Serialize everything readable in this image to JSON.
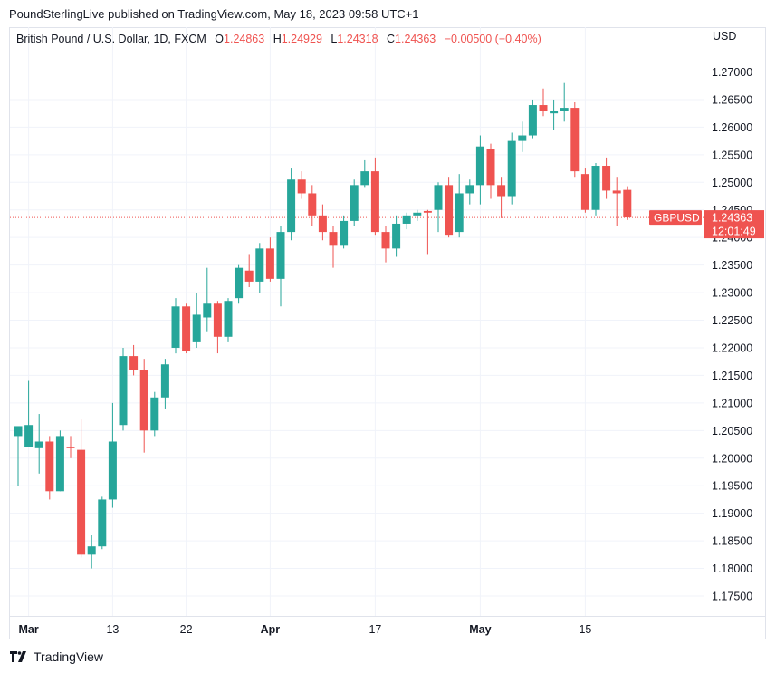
{
  "header": {
    "text": "PoundSterlingLive published on TradingView.com, May 18, 2023 09:58 UTC+1"
  },
  "legend": {
    "symbol": "British Pound / U.S. Dollar, 1D, FXCM",
    "o_label": "O",
    "o_value": "1.24863",
    "h_label": "H",
    "h_value": "1.24929",
    "l_label": "L",
    "l_value": "1.24318",
    "c_label": "C",
    "c_value": "1.24363",
    "change": "−0.00500 (−0.40%)"
  },
  "price_axis": {
    "currency": "USD"
  },
  "price_tag": {
    "symbol": "GBPUSD",
    "price": "1.24363",
    "countdown": "12:01:49"
  },
  "footer": {
    "brand": "TradingView"
  },
  "colors": {
    "up": "#26a69a",
    "down": "#ef5350",
    "grid": "#f0f3fa",
    "text": "#131722"
  },
  "chart_data": {
    "type": "candlestick",
    "symbol": "GBPUSD",
    "ylim": [
      1.17,
      1.275
    ],
    "yticks": [
      1.175,
      1.18,
      1.185,
      1.19,
      1.195,
      1.2,
      1.205,
      1.21,
      1.215,
      1.22,
      1.225,
      1.23,
      1.235,
      1.24,
      1.245,
      1.25,
      1.255,
      1.26,
      1.265,
      1.27
    ],
    "ytick_labels": [
      "1.17500",
      "1.18000",
      "1.18500",
      "1.19000",
      "1.19500",
      "1.20000",
      "1.20500",
      "1.21000",
      "1.21500",
      "1.22000",
      "1.22500",
      "1.23000",
      "1.23500",
      "1.24000",
      "1.24500",
      "1.25000",
      "1.25500",
      "1.26000",
      "1.26500",
      "1.27000"
    ],
    "xtick_labels": [
      {
        "label": "Mar",
        "index": 1,
        "bold": true
      },
      {
        "label": "13",
        "index": 9,
        "bold": false
      },
      {
        "label": "22",
        "index": 16,
        "bold": false
      },
      {
        "label": "Apr",
        "index": 24,
        "bold": true
      },
      {
        "label": "17",
        "index": 34,
        "bold": false
      },
      {
        "label": "May",
        "index": 44,
        "bold": true
      },
      {
        "label": "15",
        "index": 54,
        "bold": false
      }
    ],
    "candles": [
      {
        "o": 1.204,
        "h": 1.2058,
        "l": 1.195,
        "c": 1.2058
      },
      {
        "o": 1.202,
        "h": 1.214,
        "l": 1.202,
        "c": 1.206
      },
      {
        "o": 1.2018,
        "h": 1.208,
        "l": 1.1972,
        "c": 1.203
      },
      {
        "o": 1.203,
        "h": 1.204,
        "l": 1.1925,
        "c": 1.194
      },
      {
        "o": 1.194,
        "h": 1.205,
        "l": 1.194,
        "c": 1.204
      },
      {
        "o": 1.202,
        "h": 1.204,
        "l": 1.2,
        "c": 1.2018
      },
      {
        "o": 1.2015,
        "h": 1.207,
        "l": 1.182,
        "c": 1.1825
      },
      {
        "o": 1.1825,
        "h": 1.186,
        "l": 1.18,
        "c": 1.184
      },
      {
        "o": 1.184,
        "h": 1.193,
        "l": 1.1835,
        "c": 1.1925
      },
      {
        "o": 1.1925,
        "h": 1.21,
        "l": 1.191,
        "c": 1.203
      },
      {
        "o": 1.206,
        "h": 1.22,
        "l": 1.205,
        "c": 1.2185
      },
      {
        "o": 1.2185,
        "h": 1.2205,
        "l": 1.215,
        "c": 1.216
      },
      {
        "o": 1.216,
        "h": 1.218,
        "l": 1.201,
        "c": 1.205
      },
      {
        "o": 1.205,
        "h": 1.212,
        "l": 1.204,
        "c": 1.211
      },
      {
        "o": 1.211,
        "h": 1.218,
        "l": 1.209,
        "c": 1.217
      },
      {
        "o": 1.22,
        "h": 1.229,
        "l": 1.219,
        "c": 1.2275
      },
      {
        "o": 1.2275,
        "h": 1.228,
        "l": 1.219,
        "c": 1.2195
      },
      {
        "o": 1.221,
        "h": 1.23,
        "l": 1.22,
        "c": 1.226
      },
      {
        "o": 1.2255,
        "h": 1.2345,
        "l": 1.223,
        "c": 1.228
      },
      {
        "o": 1.228,
        "h": 1.2285,
        "l": 1.219,
        "c": 1.222
      },
      {
        "o": 1.222,
        "h": 1.229,
        "l": 1.221,
        "c": 1.2285
      },
      {
        "o": 1.229,
        "h": 1.235,
        "l": 1.228,
        "c": 1.2345
      },
      {
        "o": 1.234,
        "h": 1.237,
        "l": 1.231,
        "c": 1.232
      },
      {
        "o": 1.232,
        "h": 1.239,
        "l": 1.23,
        "c": 1.238
      },
      {
        "o": 1.238,
        "h": 1.24,
        "l": 1.232,
        "c": 1.2325
      },
      {
        "o": 1.2325,
        "h": 1.242,
        "l": 1.2275,
        "c": 1.241
      },
      {
        "o": 1.241,
        "h": 1.2525,
        "l": 1.2395,
        "c": 1.2505
      },
      {
        "o": 1.2505,
        "h": 1.252,
        "l": 1.247,
        "c": 1.248
      },
      {
        "o": 1.248,
        "h": 1.2495,
        "l": 1.242,
        "c": 1.244
      },
      {
        "o": 1.244,
        "h": 1.246,
        "l": 1.2395,
        "c": 1.241
      },
      {
        "o": 1.241,
        "h": 1.242,
        "l": 1.2345,
        "c": 1.2385
      },
      {
        "o": 1.2385,
        "h": 1.244,
        "l": 1.238,
        "c": 1.243
      },
      {
        "o": 1.243,
        "h": 1.2505,
        "l": 1.242,
        "c": 1.2495
      },
      {
        "o": 1.2495,
        "h": 1.254,
        "l": 1.249,
        "c": 1.252
      },
      {
        "o": 1.252,
        "h": 1.2545,
        "l": 1.2405,
        "c": 1.241
      },
      {
        "o": 1.241,
        "h": 1.242,
        "l": 1.2355,
        "c": 1.238
      },
      {
        "o": 1.238,
        "h": 1.244,
        "l": 1.2365,
        "c": 1.2425
      },
      {
        "o": 1.2425,
        "h": 1.2445,
        "l": 1.2415,
        "c": 1.244
      },
      {
        "o": 1.244,
        "h": 1.245,
        "l": 1.243,
        "c": 1.2445
      },
      {
        "o": 1.2448,
        "h": 1.245,
        "l": 1.237,
        "c": 1.2445
      },
      {
        "o": 1.245,
        "h": 1.25,
        "l": 1.241,
        "c": 1.2495
      },
      {
        "o": 1.2495,
        "h": 1.251,
        "l": 1.24,
        "c": 1.2405
      },
      {
        "o": 1.241,
        "h": 1.2515,
        "l": 1.24,
        "c": 1.248
      },
      {
        "o": 1.248,
        "h": 1.2505,
        "l": 1.246,
        "c": 1.2495
      },
      {
        "o": 1.2495,
        "h": 1.2585,
        "l": 1.246,
        "c": 1.2565
      },
      {
        "o": 1.256,
        "h": 1.257,
        "l": 1.247,
        "c": 1.2495
      },
      {
        "o": 1.2495,
        "h": 1.251,
        "l": 1.2435,
        "c": 1.2475
      },
      {
        "o": 1.2475,
        "h": 1.259,
        "l": 1.246,
        "c": 1.2575
      },
      {
        "o": 1.2575,
        "h": 1.261,
        "l": 1.2555,
        "c": 1.2585
      },
      {
        "o": 1.2585,
        "h": 1.265,
        "l": 1.258,
        "c": 1.264
      },
      {
        "o": 1.264,
        "h": 1.267,
        "l": 1.262,
        "c": 1.263
      },
      {
        "o": 1.2625,
        "h": 1.265,
        "l": 1.2595,
        "c": 1.263
      },
      {
        "o": 1.263,
        "h": 1.268,
        "l": 1.261,
        "c": 1.2635
      },
      {
        "o": 1.2635,
        "h": 1.2645,
        "l": 1.251,
        "c": 1.252
      },
      {
        "o": 1.2515,
        "h": 1.2525,
        "l": 1.2445,
        "c": 1.245
      },
      {
        "o": 1.245,
        "h": 1.2535,
        "l": 1.244,
        "c": 1.253
      },
      {
        "o": 1.253,
        "h": 1.2545,
        "l": 1.247,
        "c": 1.2485
      },
      {
        "o": 1.2485,
        "h": 1.251,
        "l": 1.242,
        "c": 1.248
      },
      {
        "o": 1.24863,
        "h": 1.24929,
        "l": 1.24318,
        "c": 1.24363
      }
    ]
  }
}
